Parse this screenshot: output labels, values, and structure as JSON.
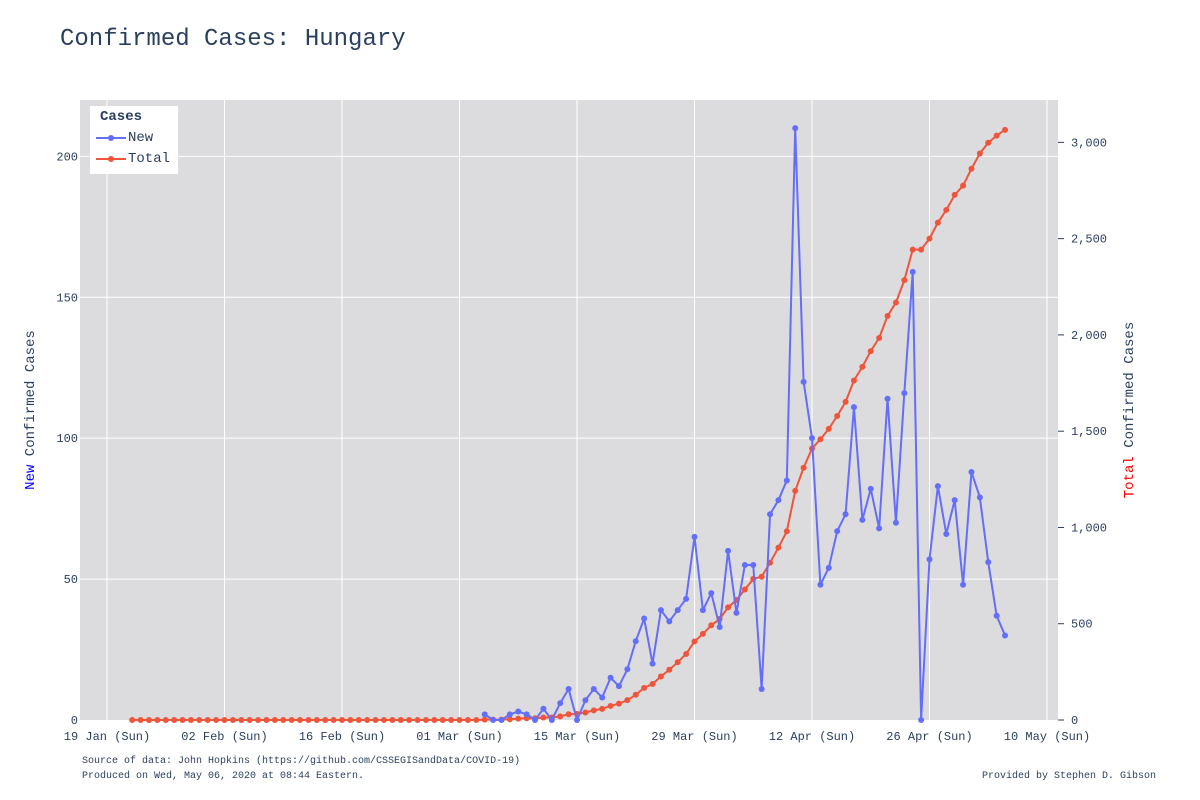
{
  "title": "Confirmed Cases: Hungary",
  "footer": {
    "source": "Source of data: John Hopkins (https://github.com/CSSEGISandData/COVID-19)",
    "produced": "Produced on Wed, May 06, 2020 at 08:44 Eastern.",
    "provided": "Provided by Stephen D. Gibson"
  },
  "legend": {
    "title": "Cases",
    "items": [
      "New",
      "Total"
    ]
  },
  "chart_data": {
    "type": "line",
    "x_start": "2020-01-22",
    "x_end": "2020-05-05",
    "x_ticks": [
      "19 Jan (Sun)",
      "02 Feb (Sun)",
      "16 Feb (Sun)",
      "01 Mar (Sun)",
      "15 Mar (Sun)",
      "29 Mar (Sun)",
      "12 Apr (Sun)",
      "26 Apr (Sun)",
      "10 May (Sun)"
    ],
    "y_left": {
      "label_prefix": "New",
      "label_suffix": " Confirmed Cases",
      "ticks": [
        "0",
        "50",
        "100",
        "150",
        "200"
      ],
      "ylim": [
        0,
        220
      ]
    },
    "y_right": {
      "label_prefix": "Total",
      "label_suffix": " Confirmed Cases",
      "ticks": [
        "0",
        "500",
        "1,000",
        "1,500",
        "2,000",
        "2,500",
        "3,000"
      ],
      "ylim": [
        0,
        3220
      ]
    },
    "colors": {
      "new": "#636efa",
      "total": "#ef553b",
      "new_label": "#0000ff",
      "total_label": "#ff0000",
      "plot_bg": "#dcdcdf",
      "grid": "#ffffff"
    },
    "series": [
      {
        "name": "New",
        "axis": "left",
        "start_date": "2020-03-04",
        "values": [
          2,
          0,
          0,
          2,
          3,
          2,
          0,
          4,
          0,
          6,
          11,
          0,
          7,
          11,
          8,
          15,
          12,
          18,
          28,
          36,
          20,
          39,
          35,
          39,
          43,
          65,
          39,
          45,
          33,
          60,
          38,
          55,
          55,
          11,
          73,
          78,
          85,
          210,
          120,
          100,
          48,
          54,
          67,
          73,
          111,
          71,
          82,
          68,
          114,
          70,
          116,
          159,
          0,
          57,
          83,
          66,
          78,
          48,
          88,
          79,
          56,
          37,
          30
        ]
      },
      {
        "name": "Total",
        "axis": "right",
        "start_date": "2020-01-22",
        "values": [
          0,
          0,
          0,
          0,
          0,
          0,
          0,
          0,
          0,
          0,
          0,
          0,
          0,
          0,
          0,
          0,
          0,
          0,
          0,
          0,
          0,
          0,
          0,
          0,
          0,
          0,
          0,
          0,
          0,
          0,
          0,
          0,
          0,
          0,
          0,
          0,
          0,
          0,
          0,
          0,
          0,
          0,
          2,
          2,
          2,
          4,
          7,
          9,
          9,
          13,
          13,
          19,
          30,
          32,
          39,
          50,
          58,
          73,
          85,
          103,
          131,
          167,
          187,
          226,
          261,
          300,
          343,
          408,
          447,
          492,
          525,
          585,
          623,
          678,
          733,
          744,
          817,
          895,
          980,
          1190,
          1310,
          1410,
          1458,
          1512,
          1579,
          1652,
          1763,
          1834,
          1916,
          1984,
          2098,
          2168,
          2284,
          2443,
          2443,
          2500,
          2583,
          2649,
          2727,
          2775,
          2863,
          2942,
          2998,
          3035,
          3065
        ]
      }
    ]
  }
}
